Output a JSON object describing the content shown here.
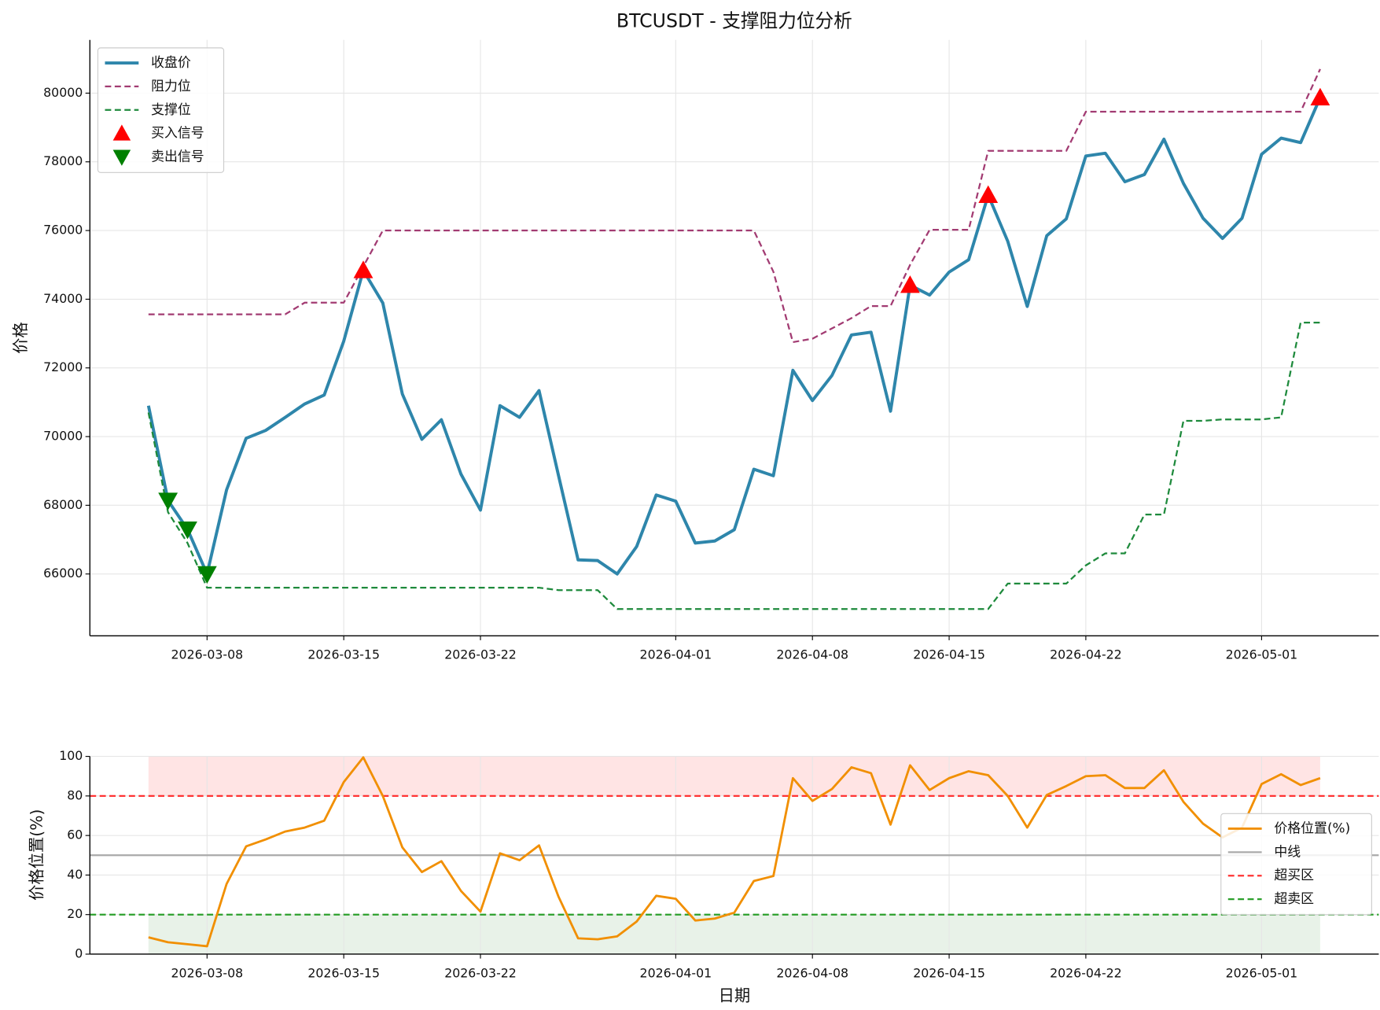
{
  "chart_data": [
    {
      "type": "line",
      "title": "BTCUSDT - 支撑阻力位分析",
      "y_label": "价格",
      "x": [
        "2026-03-05",
        "2026-03-06",
        "2026-03-07",
        "2026-03-08",
        "2026-03-09",
        "2026-03-10",
        "2026-03-11",
        "2026-03-12",
        "2026-03-13",
        "2026-03-14",
        "2026-03-15",
        "2026-03-16",
        "2026-03-17",
        "2026-03-18",
        "2026-03-19",
        "2026-03-20",
        "2026-03-21",
        "2026-03-22",
        "2026-03-23",
        "2026-03-24",
        "2026-03-25",
        "2026-03-26",
        "2026-03-27",
        "2026-03-28",
        "2026-03-29",
        "2026-03-30",
        "2026-03-31",
        "2026-04-01",
        "2026-04-02",
        "2026-04-03",
        "2026-04-04",
        "2026-04-05",
        "2026-04-06",
        "2026-04-07",
        "2026-04-08",
        "2026-04-09",
        "2026-04-10",
        "2026-04-11",
        "2026-04-12",
        "2026-04-13",
        "2026-04-14",
        "2026-04-15",
        "2026-04-16",
        "2026-04-17",
        "2026-04-18",
        "2026-04-19",
        "2026-04-20",
        "2026-04-21",
        "2026-04-22",
        "2026-04-23",
        "2026-04-24",
        "2026-04-25",
        "2026-04-26",
        "2026-04-27",
        "2026-04-28",
        "2026-04-29",
        "2026-04-30",
        "2026-05-01",
        "2026-05-02",
        "2026-05-03",
        "2026-05-04"
      ],
      "series": [
        {
          "name": "收盘价",
          "color": "#2e86ab",
          "style": "solid",
          "width": 3.5,
          "values": [
            70900,
            68140,
            67300,
            66000,
            68450,
            69950,
            70180,
            70560,
            70950,
            71210,
            72780,
            74840,
            73890,
            71240,
            69920,
            70490,
            68910,
            67860,
            70900,
            70560,
            71340,
            68860,
            66410,
            66390,
            66000,
            66800,
            68300,
            68120,
            66900,
            66960,
            67290,
            69050,
            68860,
            71930,
            71050,
            71780,
            72960,
            73040,
            70740,
            74410,
            74120,
            74790,
            75150,
            77030,
            75690,
            73790,
            75850,
            76340,
            78170,
            78250,
            77420,
            77630,
            78660,
            77370,
            76360,
            75770,
            76360,
            78220,
            78690,
            78560,
            79870
          ]
        },
        {
          "name": "阻力位",
          "color": "#a23b72",
          "style": "dashed",
          "width": 2,
          "values": [
            73560,
            73560,
            73560,
            73560,
            73560,
            73560,
            73560,
            73560,
            73900,
            73900,
            73900,
            74950,
            76000,
            76000,
            76000,
            76000,
            76000,
            76000,
            76000,
            76000,
            76000,
            76000,
            76000,
            76000,
            76000,
            76000,
            76000,
            76000,
            76000,
            76000,
            76000,
            76000,
            74800,
            72750,
            72850,
            73150,
            73450,
            73800,
            73800,
            75000,
            76020,
            76020,
            76020,
            78320,
            78320,
            78320,
            78320,
            78320,
            79460,
            79460,
            79460,
            79460,
            79460,
            79460,
            79460,
            79460,
            79460,
            79460,
            79460,
            79460,
            80700
          ]
        },
        {
          "name": "支撑位",
          "color": "#1e8a3c",
          "style": "dashed",
          "width": 2,
          "values": [
            70700,
            67800,
            66900,
            65600,
            65600,
            65600,
            65600,
            65600,
            65600,
            65600,
            65600,
            65600,
            65600,
            65600,
            65600,
            65600,
            65600,
            65600,
            65600,
            65600,
            65600,
            65530,
            65530,
            65530,
            64980,
            64980,
            64980,
            64980,
            64980,
            64980,
            64980,
            64980,
            64980,
            64980,
            64980,
            64980,
            64980,
            64980,
            64980,
            64980,
            64980,
            64980,
            64980,
            64980,
            65720,
            65720,
            65720,
            65720,
            66250,
            66600,
            66600,
            67730,
            67730,
            70460,
            70460,
            70500,
            70500,
            70500,
            70560,
            73320,
            73320
          ]
        },
        {
          "name": "买入信号",
          "color": "#ff0000",
          "marker": "triangle-up",
          "values": [
            null,
            null,
            null,
            null,
            null,
            null,
            null,
            null,
            null,
            null,
            null,
            74840,
            null,
            null,
            null,
            null,
            null,
            null,
            null,
            null,
            null,
            null,
            null,
            null,
            null,
            null,
            null,
            null,
            null,
            null,
            null,
            null,
            null,
            null,
            null,
            null,
            null,
            null,
            null,
            74410,
            null,
            null,
            null,
            77030,
            null,
            null,
            null,
            null,
            null,
            null,
            null,
            null,
            null,
            null,
            null,
            null,
            null,
            null,
            null,
            null,
            79870
          ]
        },
        {
          "name": "卖出信号",
          "color": "#008000",
          "marker": "triangle-down",
          "values": [
            null,
            68140,
            67300,
            66000,
            null,
            null,
            null,
            null,
            null,
            null,
            null,
            null,
            null,
            null,
            null,
            null,
            null,
            null,
            null,
            null,
            null,
            null,
            null,
            null,
            null,
            null,
            null,
            null,
            null,
            null,
            null,
            null,
            null,
            null,
            null,
            null,
            null,
            null,
            null,
            null,
            null,
            null,
            null,
            null,
            null,
            null,
            null,
            null,
            null,
            null,
            null,
            null,
            null,
            null,
            null,
            null,
            null,
            null,
            null,
            null,
            null
          ]
        }
      ],
      "xlim": [
        "2026-03-02",
        "2026-05-07"
      ],
      "xticks": [
        "2026-03-08",
        "2026-03-15",
        "2026-03-22",
        "2026-04-01",
        "2026-04-08",
        "2026-04-15",
        "2026-04-22",
        "2026-05-01"
      ],
      "ylim": [
        64200,
        81550
      ],
      "yticks": [
        66000,
        68000,
        70000,
        72000,
        74000,
        76000,
        78000,
        80000
      ],
      "grid": true,
      "legend": "upper left"
    },
    {
      "type": "line",
      "y_label": "价格位置(%)",
      "x_label": "日期",
      "x": [
        "2026-03-05",
        "2026-03-06",
        "2026-03-07",
        "2026-03-08",
        "2026-03-09",
        "2026-03-10",
        "2026-03-11",
        "2026-03-12",
        "2026-03-13",
        "2026-03-14",
        "2026-03-15",
        "2026-03-16",
        "2026-03-17",
        "2026-03-18",
        "2026-03-19",
        "2026-03-20",
        "2026-03-21",
        "2026-03-22",
        "2026-03-23",
        "2026-03-24",
        "2026-03-25",
        "2026-03-26",
        "2026-03-27",
        "2026-03-28",
        "2026-03-29",
        "2026-03-30",
        "2026-03-31",
        "2026-04-01",
        "2026-04-02",
        "2026-04-03",
        "2026-04-04",
        "2026-04-05",
        "2026-04-06",
        "2026-04-07",
        "2026-04-08",
        "2026-04-09",
        "2026-04-10",
        "2026-04-11",
        "2026-04-12",
        "2026-04-13",
        "2026-04-14",
        "2026-04-15",
        "2026-04-16",
        "2026-04-17",
        "2026-04-18",
        "2026-04-19",
        "2026-04-20",
        "2026-04-21",
        "2026-04-22",
        "2026-04-23",
        "2026-04-24",
        "2026-04-25",
        "2026-04-26",
        "2026-04-27",
        "2026-04-28",
        "2026-04-29",
        "2026-04-30",
        "2026-05-01",
        "2026-05-02",
        "2026-05-03",
        "2026-05-04"
      ],
      "series": [
        {
          "name": "价格位置(%)",
          "color": "#f18f01",
          "style": "solid",
          "width": 2.5,
          "values": [
            8.5,
            6,
            5,
            4,
            35.5,
            54.5,
            58,
            62,
            64,
            67.5,
            87,
            99.5,
            80,
            54,
            41.5,
            47,
            32,
            21.5,
            51,
            47.5,
            55,
            29,
            8,
            7.5,
            9,
            16.5,
            29.5,
            28,
            17,
            18,
            21,
            37,
            39.5,
            89,
            77.5,
            83.5,
            94.5,
            91.5,
            65.5,
            95.5,
            83,
            89,
            92.5,
            90.5,
            80,
            64,
            80.5,
            85,
            90,
            90.5,
            84,
            84,
            93,
            77,
            66,
            59,
            64,
            86,
            91,
            85.5,
            89
          ]
        }
      ],
      "reference_lines": [
        {
          "name": "中线",
          "value": 50,
          "color": "#aaaaaa",
          "style": "solid"
        },
        {
          "name": "超买区",
          "value": 80,
          "color": "#ff3333",
          "style": "dashed"
        },
        {
          "name": "超卖区",
          "value": 20,
          "color": "#2ca02c",
          "style": "dashed"
        }
      ],
      "bands": [
        {
          "from": 80,
          "to": 100,
          "color": "#ffdddd"
        },
        {
          "from": 0,
          "to": 20,
          "color": "#e2efe2"
        }
      ],
      "xlim": [
        "2026-03-02",
        "2026-05-07"
      ],
      "xticks": [
        "2026-03-08",
        "2026-03-15",
        "2026-03-22",
        "2026-04-01",
        "2026-04-08",
        "2026-04-15",
        "2026-04-22",
        "2026-05-01"
      ],
      "ylim": [
        0,
        100
      ],
      "yticks": [
        0,
        20,
        40,
        60,
        80,
        100
      ],
      "grid": true,
      "legend": "center right"
    }
  ]
}
